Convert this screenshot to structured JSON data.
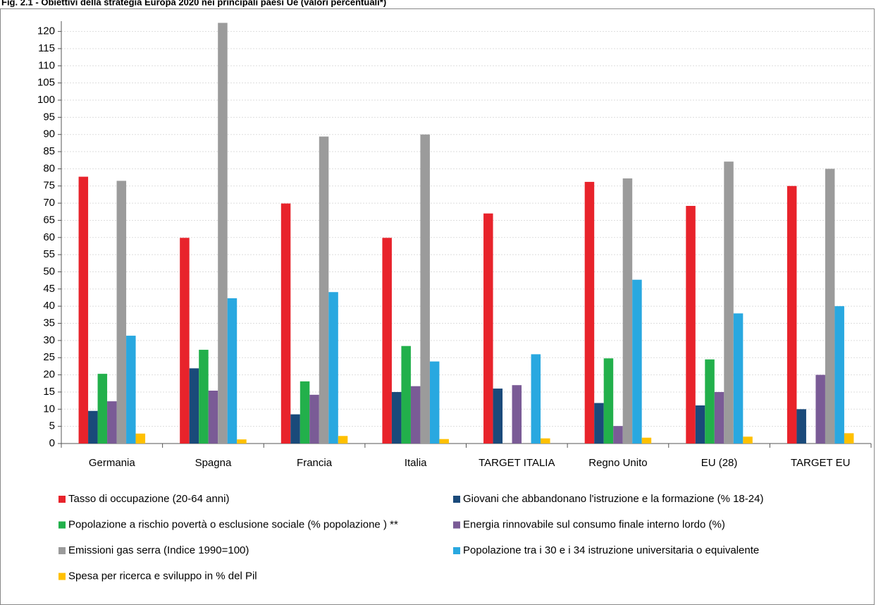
{
  "chart_data": {
    "type": "bar",
    "title": "Fig. 2.1 - Obiettivi della strategia Europa 2020 nei principali paesi Ue (valori percentuali*)",
    "categories": [
      "Germania",
      "Spagna",
      "Francia",
      "Italia",
      "TARGET ITALIA",
      "Regno Unito",
      "EU (28)",
      "TARGET EU"
    ],
    "series": [
      {
        "name": "Tasso di occupazione (20-64 anni)",
        "color": "#e8232b",
        "values": [
          77.7,
          59.9,
          69.9,
          59.9,
          67,
          76.2,
          69.2,
          75
        ]
      },
      {
        "name": "Giovani che abbandonano l'istruzione e la formazione (% 18-24)",
        "color": "#1a4a7a",
        "values": [
          9.5,
          21.9,
          8.5,
          15,
          16,
          11.8,
          11.1,
          10
        ]
      },
      {
        "name": "Popolazione a rischio povertà o esclusione sociale  (% popolazione ) **",
        "color": "#22b04b",
        "values": [
          20.3,
          27.3,
          18.1,
          28.4,
          null,
          24.8,
          24.5,
          null
        ]
      },
      {
        "name": "Energia rinnovabile sul consumo finale interno lordo (%)",
        "color": "#7a5b96",
        "values": [
          12.3,
          15.4,
          14.2,
          16.7,
          17,
          5.1,
          15,
          20
        ]
      },
      {
        "name": "Emissioni gas serra (Indice 1990=100)",
        "color": "#9b9b9b",
        "values": [
          76.5,
          122.5,
          89.4,
          90,
          null,
          77.2,
          82.1,
          80
        ]
      },
      {
        "name": "Popolazione tra i 30 e i 34  istruzione universitaria o equivalente",
        "color": "#29a8e0",
        "values": [
          31.4,
          42.3,
          44.1,
          23.9,
          26,
          47.7,
          37.9,
          40
        ]
      },
      {
        "name": "Spesa per ricerca e sviluppo in % del  Pil",
        "color": "#ffc000",
        "values": [
          2.9,
          1.2,
          2.2,
          1.3,
          1.5,
          1.7,
          2.0,
          3
        ]
      }
    ],
    "ylim": [
      0,
      123
    ],
    "yticks": [
      0,
      5,
      10,
      15,
      20,
      25,
      30,
      35,
      40,
      45,
      50,
      55,
      60,
      65,
      70,
      75,
      80,
      85,
      90,
      95,
      100,
      105,
      110,
      115,
      120
    ],
    "grid": true
  }
}
